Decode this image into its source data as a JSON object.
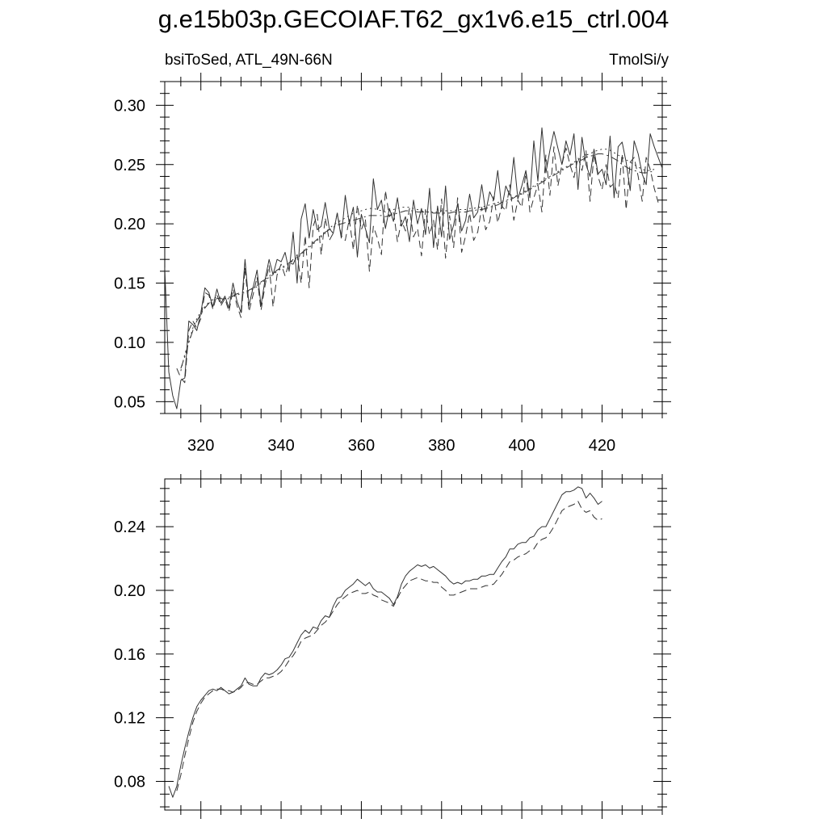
{
  "title": "g.e15b03p.GECOIAF.T62_gx1v6.e15_ctrl.004",
  "subtitle_left": "bsiToSed, ATL_49N-66N",
  "subtitle_right": "TmolSi/y",
  "colors": {
    "line": "#333333",
    "axis": "#000000",
    "background": "#ffffff"
  },
  "chart_data": [
    {
      "type": "line",
      "title": "bsiToSed, ATL_49N-66N",
      "units": "TmolSi/y",
      "xlim": [
        311,
        435
      ],
      "ylim": [
        0.04,
        0.32
      ],
      "x_ticks": [
        320,
        340,
        360,
        380,
        400,
        420
      ],
      "y_ticks": [
        0.05,
        0.1,
        0.15,
        0.2,
        0.25,
        0.3
      ],
      "x_tick_labels": [
        "320",
        "340",
        "360",
        "380",
        "400",
        "420"
      ],
      "y_tick_labels": [
        "0.05",
        "0.10",
        "0.15",
        "0.20",
        "0.25",
        "0.30"
      ],
      "series": [
        {
          "name": "series-solid",
          "style": "solid",
          "x_start": 311,
          "values": [
            0.163,
            0.075,
            0.055,
            0.044,
            0.068,
            0.07,
            0.118,
            0.115,
            0.11,
            0.125,
            0.146,
            0.142,
            0.13,
            0.145,
            0.133,
            0.139,
            0.129,
            0.15,
            0.135,
            0.125,
            0.17,
            0.131,
            0.146,
            0.161,
            0.131,
            0.153,
            0.17,
            0.157,
            0.17,
            0.168,
            0.176,
            0.16,
            0.193,
            0.15,
            0.204,
            0.217,
            0.188,
            0.212,
            0.195,
            0.198,
            0.218,
            0.196,
            0.192,
            0.209,
            0.188,
            0.224,
            0.2,
            0.214,
            0.172,
            0.208,
            0.196,
            0.184,
            0.238,
            0.212,
            0.22,
            0.196,
            0.213,
            0.202,
            0.222,
            0.198,
            0.206,
            0.185,
            0.22,
            0.2,
            0.213,
            0.191,
            0.23,
            0.18,
            0.215,
            0.189,
            0.232,
            0.187,
            0.199,
            0.217,
            0.194,
            0.203,
            0.225,
            0.205,
            0.21,
            0.233,
            0.21,
            0.227,
            0.22,
            0.245,
            0.213,
            0.232,
            0.224,
            0.256,
            0.221,
            0.232,
            0.245,
            0.222,
            0.27,
            0.236,
            0.281,
            0.243,
            0.262,
            0.278,
            0.264,
            0.25,
            0.27,
            0.258,
            0.276,
            0.229,
            0.273,
            0.25,
            0.24,
            0.263,
            0.242,
            0.246,
            0.233,
            0.274,
            0.222,
            0.265,
            0.269,
            0.252,
            0.228,
            0.27,
            0.259,
            0.242,
            0.233,
            0.276,
            0.265,
            0.256,
            0.247
          ]
        },
        {
          "name": "series-dashed",
          "style": "dashed",
          "x_start": 314,
          "values": [
            0.078,
            0.07,
            0.066,
            0.11,
            0.118,
            0.112,
            0.12,
            0.142,
            0.14,
            0.128,
            0.14,
            0.131,
            0.137,
            0.126,
            0.145,
            0.131,
            0.121,
            0.163,
            0.126,
            0.14,
            0.155,
            0.127,
            0.148,
            0.165,
            0.13,
            0.157,
            0.166,
            0.156,
            0.167,
            0.166,
            0.174,
            0.15,
            0.19,
            0.146,
            0.198,
            0.208,
            0.174,
            0.205,
            0.186,
            0.192,
            0.209,
            0.19,
            0.186,
            0.204,
            0.178,
            0.216,
            0.195,
            0.204,
            0.16,
            0.198,
            0.188,
            0.174,
            0.228,
            0.206,
            0.211,
            0.185,
            0.203,
            0.194,
            0.213,
            0.189,
            0.196,
            0.173,
            0.212,
            0.191,
            0.203,
            0.178,
            0.221,
            0.171,
            0.207,
            0.18,
            0.222,
            0.176,
            0.19,
            0.209,
            0.186,
            0.193,
            0.214,
            0.195,
            0.202,
            0.223,
            0.201,
            0.215,
            0.211,
            0.233,
            0.203,
            0.22,
            0.214,
            0.244,
            0.21,
            0.222,
            0.233,
            0.21,
            0.258,
            0.224,
            0.265,
            0.232,
            0.25,
            0.264,
            0.25,
            0.239,
            0.256,
            0.245,
            0.262,
            0.219,
            0.259,
            0.24,
            0.229,
            0.25,
            0.231,
            0.234,
            0.222,
            0.259,
            0.212,
            0.252,
            0.256,
            0.24,
            0.219,
            0.256,
            0.246,
            0.23,
            0.218
          ]
        },
        {
          "name": "series-dashdot",
          "style": "dashdot",
          "x_start": 315,
          "values": [
            0.078,
            0.088,
            0.1,
            0.11,
            0.118,
            0.124,
            0.129,
            0.133,
            0.136,
            0.137,
            0.137,
            0.136,
            0.137,
            0.139,
            0.141,
            0.142,
            0.143,
            0.144,
            0.146,
            0.148,
            0.151,
            0.153,
            0.156,
            0.158,
            0.161,
            0.163,
            0.165,
            0.167,
            0.17,
            0.172,
            0.175,
            0.178,
            0.181,
            0.184,
            0.187,
            0.19,
            0.193,
            0.195,
            0.197,
            0.199,
            0.2,
            0.201,
            0.202,
            0.203,
            0.204,
            0.205,
            0.206,
            0.207,
            0.207,
            0.207,
            0.207,
            0.206,
            0.207,
            0.208,
            0.209,
            0.21,
            0.211,
            0.211,
            0.211,
            0.21,
            0.21,
            0.21,
            0.21,
            0.209,
            0.209,
            0.209,
            0.209,
            0.209,
            0.21,
            0.21,
            0.21,
            0.21,
            0.211,
            0.211,
            0.212,
            0.212,
            0.213,
            0.214,
            0.215,
            0.216,
            0.218,
            0.219,
            0.22,
            0.222,
            0.224,
            0.225,
            0.227,
            0.229,
            0.231,
            0.233,
            0.235,
            0.237,
            0.239,
            0.241,
            0.243,
            0.245,
            0.247,
            0.249,
            0.251,
            0.253,
            0.254,
            0.256,
            0.257,
            0.258,
            0.259,
            0.259,
            0.258,
            0.257,
            0.255,
            0.253,
            0.25,
            0.248,
            0.246,
            0.245,
            0.244,
            0.243,
            0.243,
            0.244,
            0.244
          ]
        },
        {
          "name": "series-dotted",
          "style": "dotted",
          "x_start": 315,
          "values": [
            0.076,
            0.09,
            0.1,
            0.112,
            0.12,
            0.126,
            0.13,
            0.134,
            0.137,
            0.138,
            0.138,
            0.137,
            0.138,
            0.139,
            0.14,
            0.141,
            0.142,
            0.143,
            0.145,
            0.147,
            0.15,
            0.152,
            0.155,
            0.157,
            0.16,
            0.162,
            0.164,
            0.166,
            0.169,
            0.171,
            0.174,
            0.177,
            0.18,
            0.183,
            0.186,
            0.189,
            0.192,
            0.196,
            0.199,
            0.201,
            0.203,
            0.205,
            0.207,
            0.209,
            0.21,
            0.211,
            0.212,
            0.213,
            0.213,
            0.212,
            0.211,
            0.21,
            0.211,
            0.212,
            0.213,
            0.214,
            0.214,
            0.214,
            0.213,
            0.212,
            0.211,
            0.21,
            0.21,
            0.21,
            0.21,
            0.211,
            0.211,
            0.211,
            0.211,
            0.212,
            0.212,
            0.212,
            0.213,
            0.213,
            0.214,
            0.214,
            0.215,
            0.216,
            0.217,
            0.218,
            0.219,
            0.22,
            0.221,
            0.223,
            0.224,
            0.226,
            0.228,
            0.23,
            0.232,
            0.234,
            0.236,
            0.238,
            0.24,
            0.242,
            0.244,
            0.246,
            0.248,
            0.25,
            0.252,
            0.254,
            0.256,
            0.258,
            0.259,
            0.261,
            0.262,
            0.263,
            0.263,
            0.262,
            0.26,
            0.258,
            0.256,
            0.254,
            0.252,
            0.25,
            0.248,
            0.246,
            0.245,
            0.245,
            0.246
          ]
        }
      ]
    },
    {
      "type": "line",
      "xlim": [
        311,
        435
      ],
      "ylim": [
        0.062,
        0.27
      ],
      "x_ticks": [
        320,
        340,
        360,
        380,
        400,
        420
      ],
      "y_ticks": [
        0.08,
        0.12,
        0.16,
        0.2,
        0.24
      ],
      "y_tick_labels": [
        "0.08",
        "0.12",
        "0.16",
        "0.20",
        "0.24"
      ],
      "series": [
        {
          "name": "smoothed-solid",
          "style": "solid",
          "x_start": 312,
          "values": [
            0.077,
            0.07,
            0.077,
            0.09,
            0.101,
            0.111,
            0.12,
            0.127,
            0.131,
            0.134,
            0.137,
            0.138,
            0.137,
            0.139,
            0.137,
            0.135,
            0.136,
            0.138,
            0.14,
            0.145,
            0.141,
            0.14,
            0.14,
            0.145,
            0.148,
            0.147,
            0.148,
            0.15,
            0.153,
            0.157,
            0.158,
            0.162,
            0.167,
            0.172,
            0.175,
            0.173,
            0.177,
            0.176,
            0.181,
            0.184,
            0.183,
            0.19,
            0.195,
            0.196,
            0.2,
            0.202,
            0.204,
            0.207,
            0.205,
            0.203,
            0.205,
            0.201,
            0.199,
            0.199,
            0.197,
            0.195,
            0.191,
            0.196,
            0.204,
            0.209,
            0.212,
            0.214,
            0.216,
            0.215,
            0.216,
            0.214,
            0.215,
            0.213,
            0.211,
            0.209,
            0.206,
            0.204,
            0.205,
            0.204,
            0.206,
            0.206,
            0.207,
            0.207,
            0.209,
            0.209,
            0.21,
            0.21,
            0.214,
            0.218,
            0.221,
            0.226,
            0.226,
            0.229,
            0.23,
            0.23,
            0.233,
            0.234,
            0.238,
            0.24,
            0.24,
            0.245,
            0.25,
            0.255,
            0.26,
            0.262,
            0.262,
            0.263,
            0.265,
            0.264,
            0.258,
            0.261,
            0.258,
            0.254,
            0.256
          ]
        },
        {
          "name": "smoothed-dashed",
          "style": "dashed",
          "x_start": 314,
          "values": [
            0.074,
            0.084,
            0.096,
            0.107,
            0.117,
            0.124,
            0.129,
            0.133,
            0.135,
            0.137,
            0.138,
            0.138,
            0.137,
            0.137,
            0.136,
            0.137,
            0.139,
            0.142,
            0.142,
            0.141,
            0.141,
            0.143,
            0.145,
            0.145,
            0.146,
            0.147,
            0.149,
            0.152,
            0.156,
            0.159,
            0.163,
            0.168,
            0.17,
            0.171,
            0.172,
            0.175,
            0.178,
            0.18,
            0.183,
            0.187,
            0.191,
            0.194,
            0.196,
            0.198,
            0.199,
            0.2,
            0.198,
            0.198,
            0.199,
            0.197,
            0.196,
            0.194,
            0.193,
            0.192,
            0.19,
            0.195,
            0.2,
            0.203,
            0.206,
            0.207,
            0.208,
            0.207,
            0.206,
            0.206,
            0.205,
            0.205,
            0.202,
            0.2,
            0.197,
            0.197,
            0.198,
            0.199,
            0.2,
            0.201,
            0.201,
            0.201,
            0.202,
            0.203,
            0.203,
            0.204,
            0.207,
            0.21,
            0.214,
            0.218,
            0.219,
            0.221,
            0.222,
            0.223,
            0.225,
            0.226,
            0.23,
            0.232,
            0.233,
            0.236,
            0.24,
            0.245,
            0.25,
            0.252,
            0.253,
            0.254,
            0.256,
            0.251,
            0.249,
            0.25,
            0.246,
            0.244,
            0.245
          ]
        }
      ]
    }
  ]
}
